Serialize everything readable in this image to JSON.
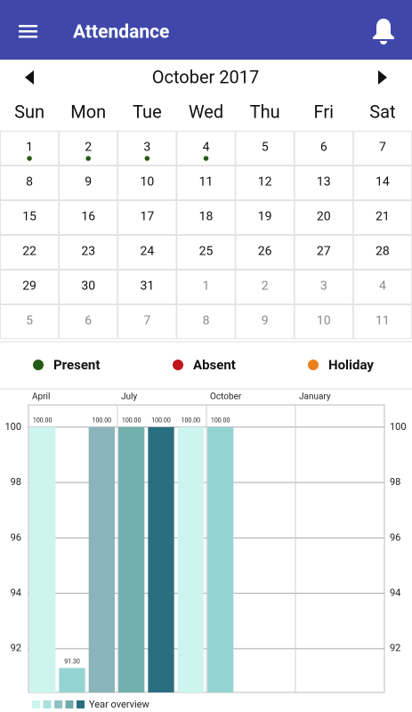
{
  "header": {
    "title": "Attendance"
  },
  "calendar": {
    "month": "October 2017",
    "weekdays": [
      "Sun",
      "Mon",
      "Tue",
      "Wed",
      "Thu",
      "Fri",
      "Sat"
    ],
    "weeks": [
      [
        {
          "day": 1,
          "in_month": true,
          "status": 0
        },
        {
          "day": 2,
          "in_month": true,
          "status": 0
        },
        {
          "day": 3,
          "in_month": true,
          "status": 0
        },
        {
          "day": 4,
          "in_month": true,
          "status": 0
        },
        {
          "day": 5,
          "in_month": true
        },
        {
          "day": 6,
          "in_month": true
        },
        {
          "day": 7,
          "in_month": true
        }
      ],
      [
        {
          "day": 8,
          "in_month": true
        },
        {
          "day": 9,
          "in_month": true
        },
        {
          "day": 10,
          "in_month": true
        },
        {
          "day": 11,
          "in_month": true
        },
        {
          "day": 12,
          "in_month": true
        },
        {
          "day": 13,
          "in_month": true
        },
        {
          "day": 14,
          "in_month": true
        }
      ],
      [
        {
          "day": 15,
          "in_month": true
        },
        {
          "day": 16,
          "in_month": true
        },
        {
          "day": 17,
          "in_month": true
        },
        {
          "day": 18,
          "in_month": true
        },
        {
          "day": 19,
          "in_month": true
        },
        {
          "day": 20,
          "in_month": true
        },
        {
          "day": 21,
          "in_month": true
        }
      ],
      [
        {
          "day": 22,
          "in_month": true
        },
        {
          "day": 23,
          "in_month": true
        },
        {
          "day": 24,
          "in_month": true
        },
        {
          "day": 25,
          "in_month": true
        },
        {
          "day": 26,
          "in_month": true
        },
        {
          "day": 27,
          "in_month": true
        },
        {
          "day": 28,
          "in_month": true
        }
      ],
      [
        {
          "day": 29,
          "in_month": true
        },
        {
          "day": 30,
          "in_month": true
        },
        {
          "day": 31,
          "in_month": true
        },
        {
          "day": 1,
          "in_month": false
        },
        {
          "day": 2,
          "in_month": false
        },
        {
          "day": 3,
          "in_month": false
        },
        {
          "day": 4,
          "in_month": false
        }
      ],
      [
        {
          "day": 5,
          "in_month": false
        },
        {
          "day": 6,
          "in_month": false
        },
        {
          "day": 7,
          "in_month": false
        },
        {
          "day": 8,
          "in_month": false
        },
        {
          "day": 9,
          "in_month": false
        },
        {
          "day": 10,
          "in_month": false
        },
        {
          "day": 11,
          "in_month": false
        }
      ]
    ]
  },
  "legend": [
    {
      "label": "Present",
      "color": "#245a17"
    },
    {
      "label": "Absent",
      "color": "#c0161b"
    },
    {
      "label": "Holiday",
      "color": "#e97f1d"
    }
  ],
  "chart_data": {
    "type": "bar",
    "categories": [
      "April",
      null,
      null,
      "July",
      null,
      null,
      "October",
      null,
      null,
      "January",
      null,
      null
    ],
    "values": [
      100,
      91.3,
      100,
      100,
      100,
      100,
      100,
      null,
      null,
      null,
      null,
      null
    ],
    "value_labels": [
      "100.00",
      "91.30",
      "100.00",
      "100.00",
      "100.00",
      "100.00",
      "100.00",
      null,
      null,
      null,
      null,
      null
    ],
    "colors": [
      "#cdf5f0",
      "#93d4d2",
      "#8ab4bb",
      "#72b0ae",
      "#2a6f80",
      "#cdf5f0",
      "#93d4d2",
      null,
      null,
      null,
      null,
      null
    ],
    "ylim": [
      90.42,
      100.8
    ],
    "yticks": [
      92,
      94,
      96,
      98,
      100
    ],
    "grid": true,
    "legend": {
      "label": "Year overview",
      "colors": [
        "#cdf5f0",
        "#a6e0dd",
        "#8fc1c4",
        "#72a9ab",
        "#2a6f80"
      ],
      "position": "bottom-left"
    }
  }
}
